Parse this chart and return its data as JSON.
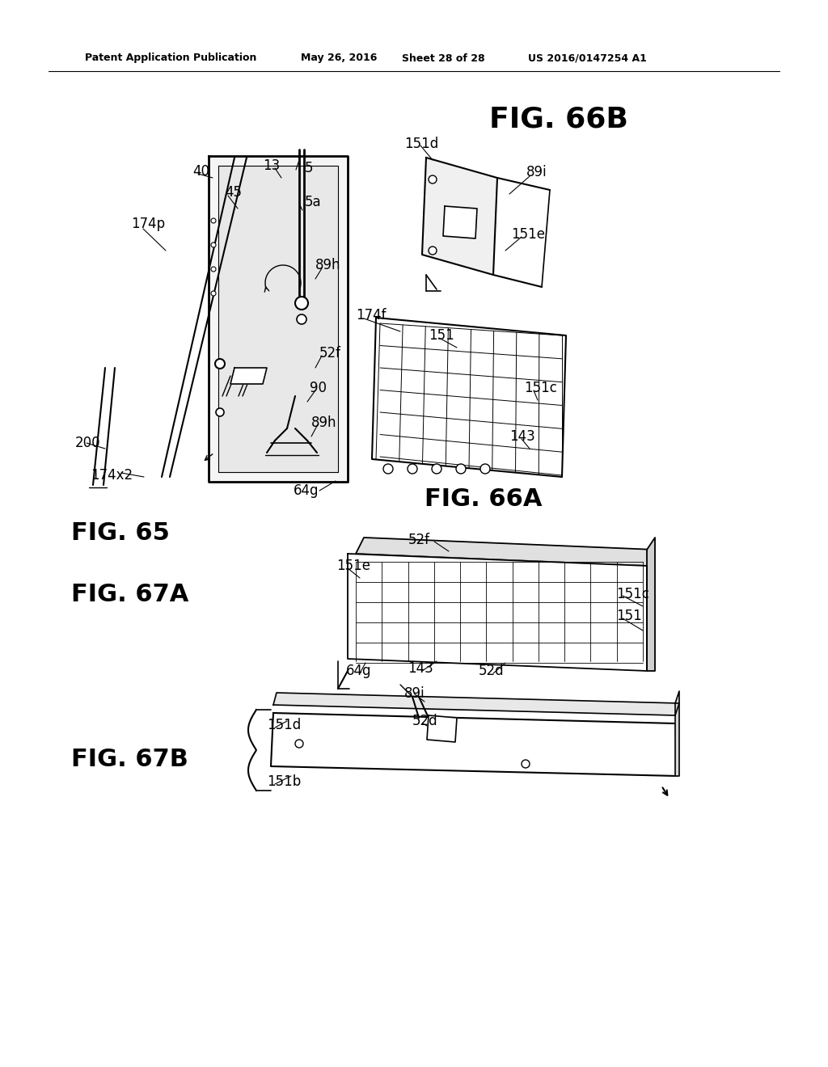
{
  "bg_color": "#ffffff",
  "header_text": "Patent Application Publication",
  "header_date": "May 26, 2016",
  "header_sheet": "Sheet 28 of 28",
  "header_patent": "US 2016/0147254 A1",
  "fig66b_title": "FIG. 66B",
  "fig66a_title": "FIG. 66A",
  "fig65_title": "FIG. 65",
  "fig67a_title": "FIG. 67A",
  "fig67b_title": "FIG. 67B",
  "line_color": "#000000",
  "text_color": "#000000"
}
